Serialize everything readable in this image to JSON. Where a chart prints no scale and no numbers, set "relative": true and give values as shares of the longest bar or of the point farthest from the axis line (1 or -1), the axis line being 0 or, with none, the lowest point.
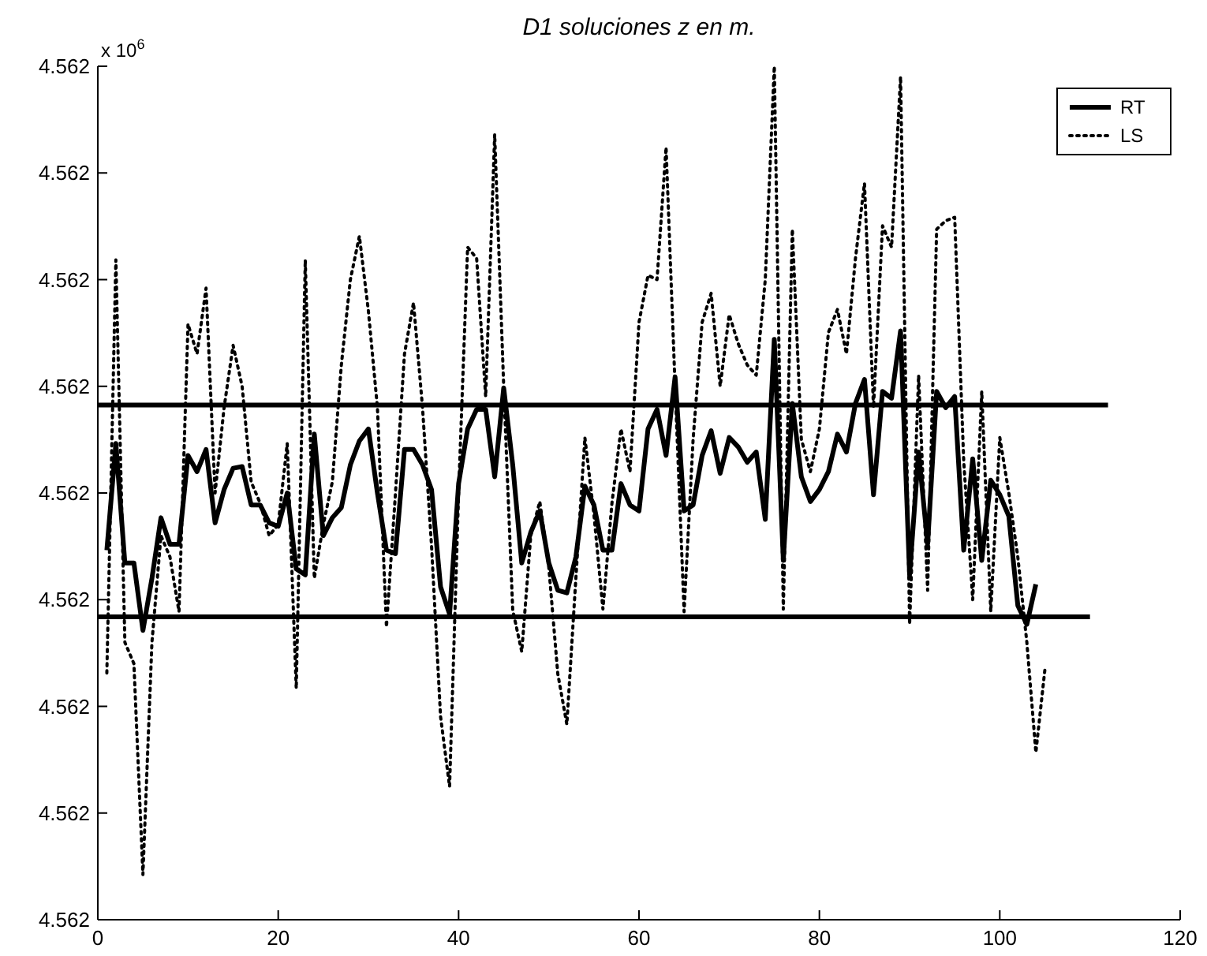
{
  "chart_data": {
    "type": "line",
    "title": "D1 soluciones z en m.",
    "annotations": [
      "x 10$^{6}$",
      "4.562",
      "4.562",
      "4.562",
      "4.562",
      "4.562",
      "4.562",
      "4.562",
      "4.562",
      "4.562"
    ],
    "xlim": [
      0,
      120
    ],
    "xticks": [
      0,
      20,
      40,
      60,
      80,
      100,
      120
    ],
    "relative": true,
    "legend": "top right",
    "marker": "none",
    "series": [
      {
        "name": "RT",
        "color": "#000000",
        "line_style": "solid",
        "x": [
          1,
          2,
          3,
          4,
          5,
          6,
          7,
          8,
          9,
          10,
          11,
          12,
          13,
          14,
          15,
          16,
          17,
          18,
          19,
          20,
          21,
          22,
          23,
          24,
          25,
          26,
          27,
          28,
          29,
          30,
          31,
          32,
          33,
          34,
          35,
          36,
          37,
          38,
          39,
          40,
          41,
          42,
          43,
          44,
          45,
          46,
          47,
          48,
          49,
          50,
          51,
          52,
          53,
          54,
          55,
          56,
          57,
          58,
          59,
          60,
          61,
          62,
          63,
          64,
          65,
          66,
          67,
          68,
          69,
          70,
          71,
          72,
          73,
          74,
          75,
          76,
          77,
          78,
          79,
          80,
          81,
          82,
          83,
          84,
          85,
          86,
          87,
          88,
          89,
          90,
          91,
          92,
          93,
          94,
          95,
          96,
          97,
          98,
          99,
          100,
          101,
          102,
          103,
          104
        ],
        "values": [
          0.433,
          0.558,
          0.418,
          0.418,
          0.339,
          0.4,
          0.471,
          0.44,
          0.44,
          0.544,
          0.525,
          0.551,
          0.465,
          0.504,
          0.529,
          0.531,
          0.486,
          0.486,
          0.465,
          0.461,
          0.5,
          0.411,
          0.404,
          0.569,
          0.45,
          0.471,
          0.483,
          0.533,
          0.561,
          0.575,
          0.5,
          0.433,
          0.429,
          0.551,
          0.551,
          0.533,
          0.504,
          0.39,
          0.358,
          0.511,
          0.575,
          0.598,
          0.598,
          0.519,
          0.623,
          0.533,
          0.418,
          0.454,
          0.479,
          0.418,
          0.386,
          0.383,
          0.425,
          0.508,
          0.486,
          0.433,
          0.433,
          0.511,
          0.486,
          0.479,
          0.575,
          0.598,
          0.544,
          0.636,
          0.479,
          0.486,
          0.544,
          0.573,
          0.523,
          0.565,
          0.554,
          0.536,
          0.548,
          0.469,
          0.68,
          0.421,
          0.605,
          0.519,
          0.49,
          0.504,
          0.525,
          0.569,
          0.548,
          0.605,
          0.633,
          0.498,
          0.619,
          0.611,
          0.69,
          0.404,
          0.548,
          0.44,
          0.619,
          0.6,
          0.613,
          0.433,
          0.54,
          0.421,
          0.515,
          0.498,
          0.473,
          0.368,
          0.346,
          0.393
        ]
      },
      {
        "name": "LS",
        "color": "#000000",
        "line_style": "dotted",
        "x": [
          1,
          2,
          3,
          4,
          5,
          6,
          7,
          8,
          9,
          10,
          11,
          12,
          13,
          14,
          15,
          16,
          17,
          18,
          19,
          20,
          21,
          22,
          23,
          24,
          25,
          26,
          27,
          28,
          29,
          30,
          31,
          32,
          33,
          34,
          35,
          36,
          37,
          38,
          39,
          40,
          41,
          42,
          43,
          44,
          45,
          46,
          47,
          48,
          49,
          50,
          51,
          52,
          53,
          54,
          55,
          56,
          57,
          58,
          59,
          60,
          61,
          62,
          63,
          64,
          65,
          66,
          67,
          68,
          69,
          70,
          71,
          72,
          73,
          74,
          75,
          76,
          77,
          78,
          79,
          80,
          81,
          82,
          83,
          84,
          85,
          86,
          87,
          88,
          89,
          90,
          91,
          92,
          93,
          94,
          95,
          96,
          97,
          98,
          99,
          100,
          101,
          102,
          103,
          104,
          105
        ],
        "values": [
          0.289,
          0.773,
          0.325,
          0.3,
          0.053,
          0.325,
          0.45,
          0.425,
          0.361,
          0.698,
          0.663,
          0.74,
          0.5,
          0.6,
          0.673,
          0.625,
          0.513,
          0.488,
          0.45,
          0.463,
          0.558,
          0.271,
          0.773,
          0.4,
          0.463,
          0.513,
          0.65,
          0.75,
          0.801,
          0.713,
          0.6,
          0.343,
          0.5,
          0.663,
          0.723,
          0.6,
          0.438,
          0.238,
          0.156,
          0.5,
          0.788,
          0.775,
          0.613,
          0.92,
          0.625,
          0.363,
          0.314,
          0.45,
          0.49,
          0.413,
          0.288,
          0.229,
          0.4,
          0.565,
          0.475,
          0.364,
          0.488,
          0.575,
          0.525,
          0.7,
          0.755,
          0.75,
          0.905,
          0.625,
          0.361,
          0.563,
          0.7,
          0.734,
          0.625,
          0.709,
          0.675,
          0.65,
          0.638,
          0.75,
          1,
          0.364,
          0.809,
          0.563,
          0.525,
          0.575,
          0.688,
          0.715,
          0.663,
          0.775,
          0.863,
          0.6,
          0.813,
          0.788,
          0.988,
          0.346,
          0.638,
          0.386,
          0.809,
          0.819,
          0.823,
          0.538,
          0.375,
          0.619,
          0.361,
          0.565,
          0.5,
          0.425,
          0.325,
          0.196,
          0.293
        ]
      },
      {
        "color": "#000000",
        "line_style": "solid",
        "x": [
          0,
          112
        ],
        "values": [
          0.603,
          0.603
        ]
      },
      {
        "color": "#000000",
        "line_style": "solid",
        "x": [
          0,
          110
        ],
        "values": [
          0.355,
          0.355
        ]
      }
    ]
  }
}
